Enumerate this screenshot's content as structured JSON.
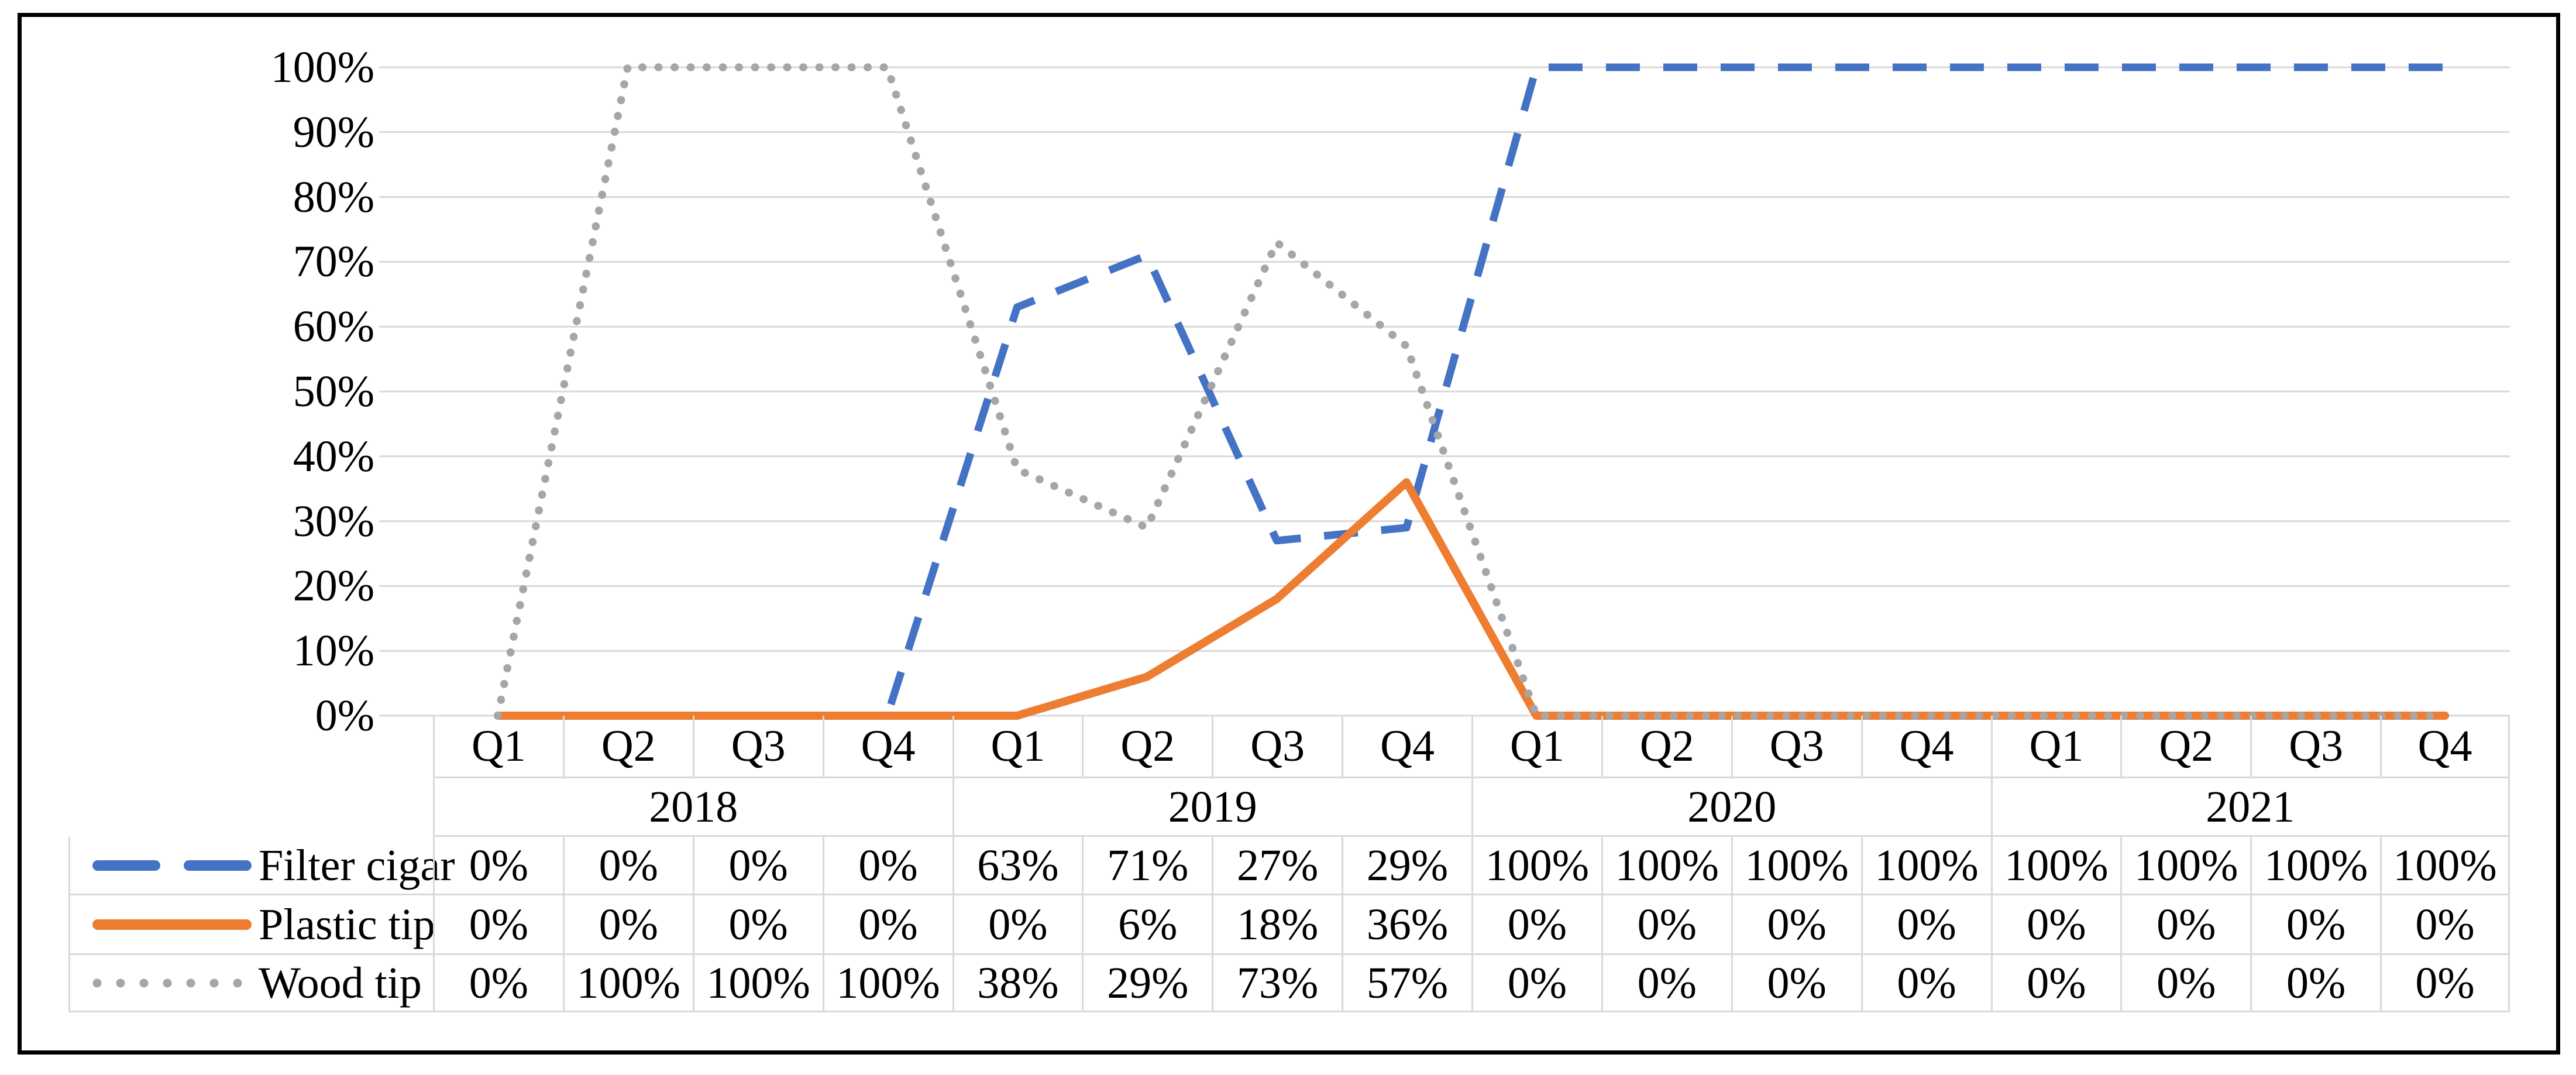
{
  "figure": {
    "background": "#ffffff",
    "border_color": "#000000"
  },
  "axis": {
    "ticks": [
      "100%",
      "90%",
      "80%",
      "70%",
      "60%",
      "50%",
      "40%",
      "30%",
      "20%",
      "10%",
      "0%"
    ]
  },
  "table": {
    "quarter_headers": [
      "Q1",
      "Q2",
      "Q3",
      "Q4",
      "Q1",
      "Q2",
      "Q3",
      "Q4",
      "Q1",
      "Q2",
      "Q3",
      "Q4",
      "Q1",
      "Q2",
      "Q3",
      "Q4"
    ],
    "year_headers": [
      "2018",
      "2019",
      "2020",
      "2021"
    ],
    "rows": [
      {
        "label": "Filter cigar",
        "cells": [
          "0%",
          "0%",
          "0%",
          "0%",
          "63%",
          "71%",
          "27%",
          "29%",
          "100%",
          "100%",
          "100%",
          "100%",
          "100%",
          "100%",
          "100%",
          "100%"
        ]
      },
      {
        "label": "Plastic tip",
        "cells": [
          "0%",
          "0%",
          "0%",
          "0%",
          "0%",
          "6%",
          "18%",
          "36%",
          "0%",
          "0%",
          "0%",
          "0%",
          "0%",
          "0%",
          "0%",
          "0%"
        ]
      },
      {
        "label": "Wood tip",
        "cells": [
          "0%",
          "100%",
          "100%",
          "100%",
          "38%",
          "29%",
          "73%",
          "57%",
          "0%",
          "0%",
          "0%",
          "0%",
          "0%",
          "0%",
          "0%",
          "0%"
        ]
      }
    ]
  },
  "chart_data": {
    "type": "line",
    "title": "",
    "x": {
      "quarters": [
        "Q1",
        "Q2",
        "Q3",
        "Q4",
        "Q1",
        "Q2",
        "Q3",
        "Q4",
        "Q1",
        "Q2",
        "Q3",
        "Q4",
        "Q1",
        "Q2",
        "Q3",
        "Q4"
      ],
      "year_groups": [
        {
          "label": "2018",
          "span": 4
        },
        {
          "label": "2019",
          "span": 4
        },
        {
          "label": "2020",
          "span": 4
        },
        {
          "label": "2021",
          "span": 4
        }
      ]
    },
    "series": [
      {
        "name": "Filter cigar",
        "color": "#4472C4",
        "line_style": "dashed",
        "values": [
          0,
          0,
          0,
          0,
          63,
          71,
          27,
          29,
          100,
          100,
          100,
          100,
          100,
          100,
          100,
          100
        ]
      },
      {
        "name": "Plastic tip",
        "color": "#ED7D31",
        "line_style": "solid",
        "values": [
          0,
          0,
          0,
          0,
          0,
          6,
          18,
          36,
          0,
          0,
          0,
          0,
          0,
          0,
          0,
          0
        ]
      },
      {
        "name": "Wood tip",
        "color": "#A6A6A6",
        "line_style": "dotted",
        "values": [
          0,
          100,
          100,
          100,
          38,
          29,
          73,
          57,
          0,
          0,
          0,
          0,
          0,
          0,
          0,
          0
        ]
      }
    ],
    "ylim": [
      0,
      100
    ],
    "y_tick_step": 10,
    "y_tick_format": "percent",
    "grid": true,
    "gridline_color": "#D9D9D9",
    "legend_position": "table-left"
  },
  "colors": {
    "table_border": "#D9D9D9",
    "text": "#000000"
  }
}
